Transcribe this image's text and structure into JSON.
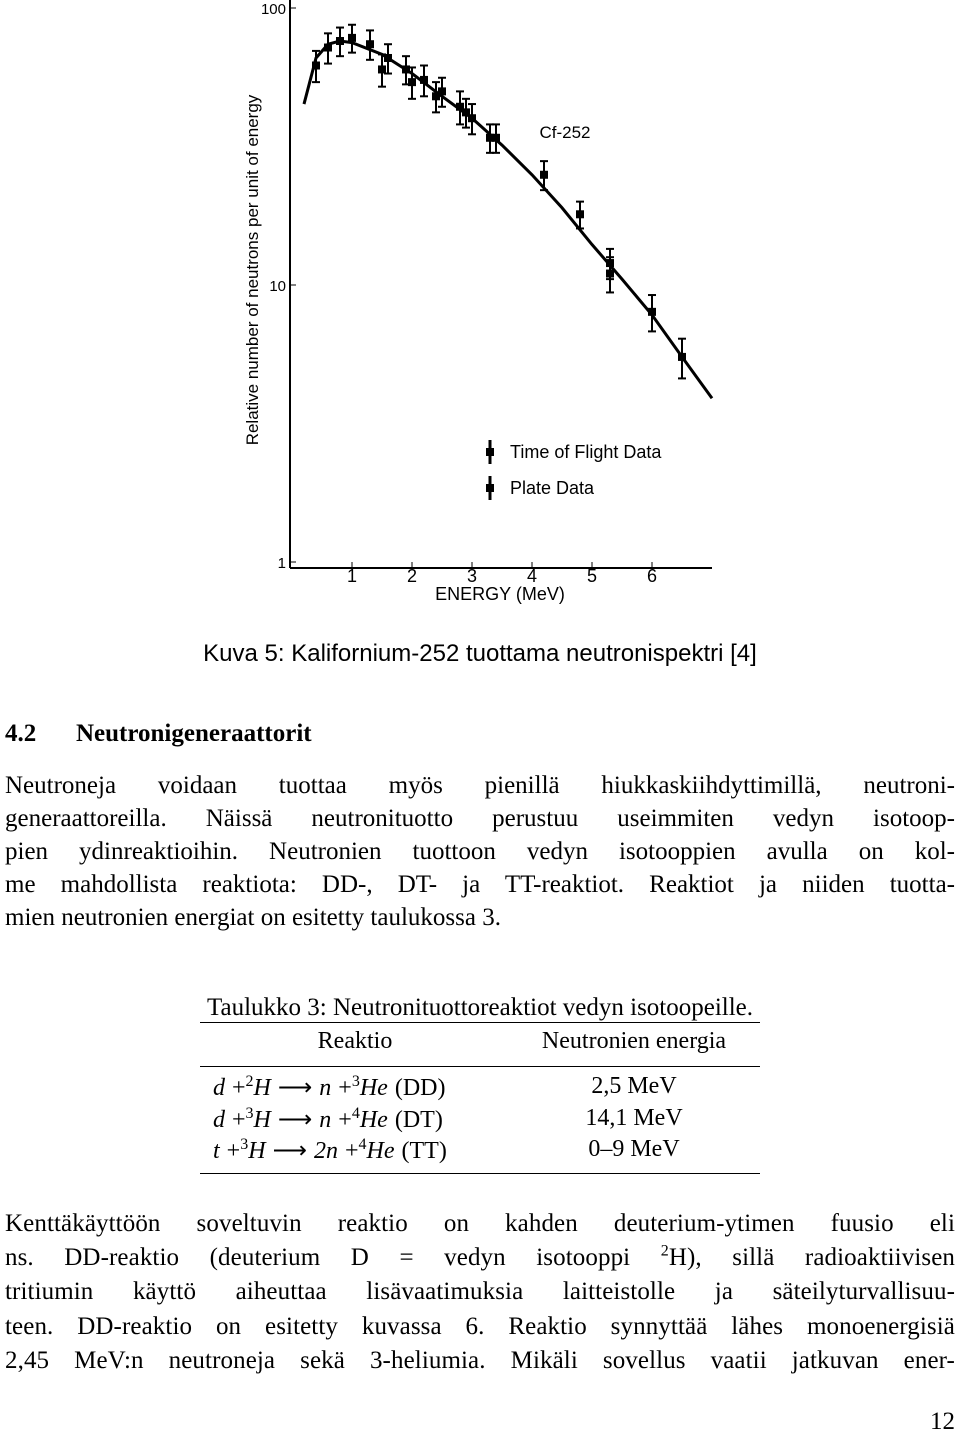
{
  "figure": {
    "chart_data": {
      "type": "scatter",
      "y_label": "Relative number of neutrons per unit of energy",
      "x_label": "ENERGY (MeV)",
      "annotation": "Cf-252",
      "log_y": true,
      "color": "#000000",
      "xlim": [
        0,
        7
      ],
      "xticks": [
        1,
        2,
        3,
        4,
        5,
        6
      ],
      "ylim": [
        1,
        100
      ],
      "yticks": [
        1,
        10,
        100
      ],
      "curve": {
        "x": [
          0.2,
          0.4,
          0.6,
          0.8,
          1.0,
          1.5,
          2,
          2.5,
          3,
          3.5,
          4,
          4.5,
          5,
          5.5,
          6,
          6.5,
          7
        ],
        "values": [
          45,
          66,
          74,
          76,
          75,
          68,
          58,
          48,
          40,
          32,
          25,
          19,
          14,
          10.5,
          7.8,
          5.5,
          3.9
        ]
      },
      "series": [
        {
          "name": "Time of Flight Data",
          "x": [
            0.4,
            0.6,
            0.8,
            1.0,
            1.3,
            1.6,
            1.9,
            2.2,
            2.5,
            2.8,
            3.0,
            3.4,
            4.2,
            4.8,
            5.3,
            6.0,
            6.5
          ],
          "values": [
            62,
            72,
            76,
            78,
            74,
            66,
            60,
            55,
            50,
            44,
            40,
            34,
            25,
            18,
            12,
            8,
            5.5
          ],
          "errors": [
            8,
            9,
            9,
            9,
            9,
            8,
            7,
            7,
            6,
            6,
            5,
            4,
            3,
            2,
            1.5,
            1.2,
            0.9
          ]
        },
        {
          "name": "Plate Data",
          "x": [
            1.5,
            2.0,
            2.4,
            2.9,
            3.3,
            5.3
          ],
          "values": [
            60,
            54,
            48,
            42,
            34,
            11
          ],
          "errors": [
            8,
            7,
            6,
            5,
            4,
            1.6
          ]
        }
      ]
    }
  },
  "caption": "Kuva 5: Kalifornium-252 tuottama neutronispektri [4]",
  "section": {
    "number": "4.2",
    "title": "Neutronigeneraattorit"
  },
  "paragraph1": [
    "Neutroneja voidaan tuottaa myös pienillä hiukkaskiihdyttimillä, neutroni-",
    "generaattoreilla. Näissä neutronituotto perustuu useimmiten vedyn isotoop-",
    "pien ydinreaktioihin. Neutronien tuottoon vedyn isotooppien avulla on kol-",
    "me mahdollista reaktiota: DD-, DT- ja TT-reaktiot. Reaktiot ja niiden tuotta-",
    "mien neutronien energiat on esitetty taulukossa 3."
  ],
  "table": {
    "caption": "Taulukko 3: Neutronituottoreaktiot vedyn isotoopeille.",
    "header": [
      "Reaktio",
      "Neutronien energia"
    ],
    "rows": [
      {
        "reaction": [
          "d",
          "+",
          "2",
          "H",
          "⟶",
          "n",
          "+",
          "3",
          "He",
          "(DD)"
        ],
        "energy": "2,5 MeV"
      },
      {
        "reaction": [
          "d",
          "+",
          "3",
          "H",
          "⟶",
          "n",
          "+",
          "4",
          "He",
          "(DT)"
        ],
        "energy": "14,1 MeV"
      },
      {
        "reaction": [
          "t",
          "+",
          "3",
          "H",
          "⟶",
          "2n",
          "+",
          "4",
          "He",
          "(TT)"
        ],
        "energy": "0–9 MeV"
      }
    ]
  },
  "paragraph2": [
    [
      "Kenttäkäyttöön soveltuvin reaktio on kahden deuterium-ytimen fuusio eli"
    ],
    [
      "ns. DD-reaktio (deuterium D = vedyn isotooppi ",
      "2",
      "H), sillä radioaktiivisen"
    ],
    [
      "tritiumin käyttö aiheuttaa lisävaatimuksia laitteistolle ja säteilyturvallisuu-"
    ],
    [
      "teen. DD-reaktio on esitetty kuvassa 6. Reaktio synnyttää lähes monoenergisiä"
    ],
    [
      "2,45 MeV:n neutroneja sekä 3-heliumia. Mikäli sovellus vaatii jatkuvan ener-"
    ]
  ],
  "page_number": "12"
}
